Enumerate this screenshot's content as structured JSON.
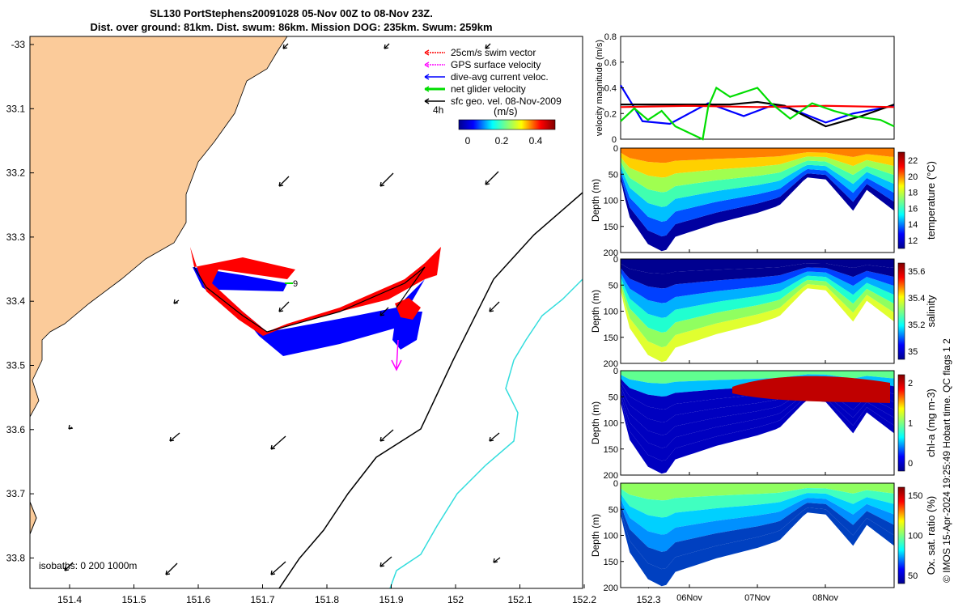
{
  "title_line1": "SL130 PortStephens20091028 05-Nov 00Z to 08-Nov 23Z.",
  "title_line2": "Dist. over ground: 81km. Dist. swum: 86km. Mission DOG: 235km. Swum: 259km",
  "credit": "© IMOS 15-Apr-2024 19:25:49 Hobart time. QC flags 1  2",
  "map": {
    "legend": [
      {
        "label": "25cm/s swim vector",
        "color": "#ff0000"
      },
      {
        "label": "GPS surface velocity",
        "color": "#ff00ff"
      },
      {
        "label": "dive-avg current veloc.",
        "color": "#0000ff"
      },
      {
        "label": "net glider velocity",
        "color": "#00dd00"
      },
      {
        "label": "sfc geo. vel. 08-Nov-2009",
        "color": "#000000"
      }
    ],
    "legend_tag": "4h",
    "colorbar_label": "(m/s)",
    "colorbar_ticks": [
      "0",
      "0.2",
      "0.4"
    ],
    "isobaths_label": "isobaths: 0   200  1000m",
    "marker_label": "9",
    "xticks": [
      "151.4",
      "151.5",
      "151.6",
      "151.7",
      "151.8",
      "151.9",
      "152",
      "152.1",
      "152.2",
      "152.3"
    ],
    "yticks": [
      "-33",
      "33.1",
      "33.2",
      "33.3",
      "33.4",
      "33.5",
      "33.6",
      "33.7",
      "33.8"
    ],
    "land_color": "#fbcb9a",
    "isobath_200_color": "#000000",
    "isobath_1000_color": "#33dddd"
  },
  "velocity_panel": {
    "ylabel": "velocity magnitude (m/s)",
    "yticks": [
      "0",
      "0.2",
      "0.4",
      "0.6",
      "0.8"
    ],
    "ylim": [
      0,
      0.8
    ],
    "series": [
      {
        "color": "#0000ff",
        "points": [
          [
            0,
            0.42
          ],
          [
            0.08,
            0.14
          ],
          [
            0.18,
            0.12
          ],
          [
            0.32,
            0.28
          ],
          [
            0.45,
            0.18
          ],
          [
            0.55,
            0.26
          ],
          [
            0.62,
            0.24
          ],
          [
            0.75,
            0.13
          ],
          [
            0.85,
            0.2
          ],
          [
            1,
            0.26
          ]
        ]
      },
      {
        "color": "#000000",
        "points": [
          [
            0,
            0.27
          ],
          [
            0.2,
            0.27
          ],
          [
            0.4,
            0.27
          ],
          [
            0.5,
            0.29
          ],
          [
            0.6,
            0.26
          ],
          [
            0.75,
            0.1
          ],
          [
            0.88,
            0.18
          ],
          [
            1,
            0.27
          ]
        ]
      },
      {
        "color": "#ff0000",
        "points": [
          [
            0,
            0.25
          ],
          [
            0.25,
            0.26
          ],
          [
            0.5,
            0.25
          ],
          [
            0.75,
            0.26
          ],
          [
            1,
            0.25
          ]
        ]
      },
      {
        "color": "#00dd00",
        "points": [
          [
            0,
            0.14
          ],
          [
            0.05,
            0.24
          ],
          [
            0.1,
            0.15
          ],
          [
            0.15,
            0.22
          ],
          [
            0.2,
            0.1
          ],
          [
            0.28,
            0.02
          ],
          [
            0.3,
            0.0
          ],
          [
            0.32,
            0.25
          ],
          [
            0.35,
            0.4
          ],
          [
            0.4,
            0.33
          ],
          [
            0.5,
            0.4
          ],
          [
            0.55,
            0.28
          ],
          [
            0.62,
            0.16
          ],
          [
            0.7,
            0.28
          ],
          [
            0.78,
            0.22
          ],
          [
            0.85,
            0.18
          ],
          [
            0.95,
            0.15
          ],
          [
            1,
            0.1
          ]
        ]
      }
    ]
  },
  "profile_panels": [
    {
      "cbar_label": "temperature (°C)",
      "cbar_ticks": [
        "12",
        "14",
        "16",
        "18",
        "20",
        "22"
      ],
      "palette": "temp"
    },
    {
      "cbar_label": "salinity",
      "cbar_ticks": [
        "35",
        "35.2",
        "35.4",
        "35.6"
      ],
      "palette": "sal"
    },
    {
      "cbar_label": "chl-a (mg m-3)",
      "cbar_ticks": [
        "0",
        "1",
        "2"
      ],
      "palette": "chl"
    },
    {
      "cbar_label": "Ox. sat. ratio (%)",
      "cbar_ticks": [
        "50",
        "100",
        "150"
      ],
      "palette": "oxy"
    }
  ],
  "profile_ylabel": "Depth (m)",
  "profile_yticks": [
    "0",
    "50",
    "100",
    "150",
    "200"
  ],
  "profile_xticks": [
    "06Nov",
    "07Nov",
    "08Nov"
  ]
}
